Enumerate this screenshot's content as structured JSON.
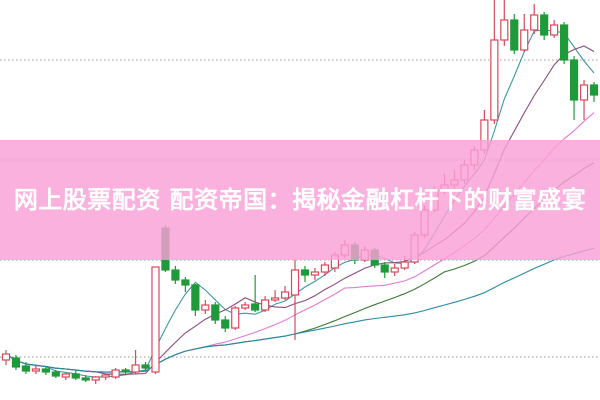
{
  "headline": "网上股票配资 配资帝国：揭秘金融杠杆下的财富盛宴",
  "colors": {
    "up": "#d9485a",
    "down": "#1f9a3a",
    "banner": "#fa9fd6",
    "grid": "#9a9a9a",
    "ma": [
      "#3a9aa0",
      "#8a4a80",
      "#e27ad6",
      "#3a7a30",
      "#2a8aa8"
    ]
  },
  "chart_data": {
    "type": "candlestick",
    "ylim": [
      0,
      40
    ],
    "grid": "horizontal-dotted",
    "moving_averages": [
      5,
      10,
      20,
      30,
      60
    ],
    "candles": [
      [
        4.0,
        5.0,
        3.5,
        4.6
      ],
      [
        4.2,
        4.5,
        3.0,
        3.3
      ],
      [
        3.4,
        3.8,
        2.6,
        2.9
      ],
      [
        2.9,
        3.4,
        2.6,
        3.1
      ],
      [
        3.1,
        3.3,
        2.5,
        2.8
      ],
      [
        2.8,
        3.0,
        2.2,
        2.4
      ],
      [
        2.3,
        2.8,
        2.0,
        2.6
      ],
      [
        2.6,
        3.0,
        2.0,
        2.2
      ],
      [
        2.2,
        2.5,
        1.8,
        2.0
      ],
      [
        2.0,
        2.4,
        1.6,
        2.3
      ],
      [
        2.3,
        2.6,
        2.0,
        2.5
      ],
      [
        2.3,
        3.2,
        2.1,
        3.0
      ],
      [
        3.0,
        3.2,
        2.5,
        2.8
      ],
      [
        2.8,
        5.0,
        2.6,
        3.5
      ],
      [
        3.5,
        3.8,
        3.0,
        3.2
      ],
      [
        2.8,
        13.3,
        2.6,
        13.3
      ],
      [
        17.2,
        17.5,
        12.8,
        13.0
      ],
      [
        13.0,
        13.4,
        11.6,
        12.0
      ],
      [
        12.0,
        12.3,
        10.8,
        11.5
      ],
      [
        11.5,
        11.6,
        8.4,
        9.0
      ],
      [
        9.0,
        10.0,
        8.6,
        9.5
      ],
      [
        9.5,
        9.8,
        7.6,
        8.0
      ],
      [
        8.0,
        8.4,
        6.8,
        7.2
      ],
      [
        7.2,
        9.4,
        7.0,
        9.2
      ],
      [
        9.2,
        9.8,
        9.0,
        9.5
      ],
      [
        9.6,
        12.5,
        8.8,
        9.0
      ],
      [
        9.0,
        10.4,
        8.8,
        10.0
      ],
      [
        10.0,
        11.0,
        9.8,
        10.2
      ],
      [
        10.2,
        11.4,
        10.0,
        10.8
      ],
      [
        10.5,
        14.0,
        6.0,
        13.0
      ],
      [
        13.0,
        13.4,
        11.8,
        12.5
      ],
      [
        12.5,
        13.2,
        12.0,
        12.8
      ],
      [
        12.8,
        13.8,
        12.4,
        13.5
      ],
      [
        13.2,
        14.8,
        12.8,
        14.5
      ],
      [
        14.5,
        16.0,
        14.2,
        15.5
      ],
      [
        15.5,
        15.8,
        13.6,
        14.0
      ],
      [
        14.0,
        15.4,
        13.8,
        15.0
      ],
      [
        15.0,
        15.2,
        13.2,
        13.5
      ],
      [
        13.5,
        13.8,
        12.2,
        12.8
      ],
      [
        12.8,
        13.6,
        12.4,
        13.2
      ],
      [
        13.2,
        14.4,
        13.0,
        13.8
      ],
      [
        13.8,
        16.8,
        13.6,
        16.5
      ],
      [
        16.5,
        19.4,
        16.2,
        19.0
      ],
      [
        19.0,
        21.4,
        18.8,
        21.0
      ],
      [
        21.0,
        22.6,
        20.6,
        21.5
      ],
      [
        21.5,
        23.0,
        21.0,
        22.0
      ],
      [
        22.0,
        24.0,
        21.6,
        23.5
      ],
      [
        23.5,
        25.4,
        23.0,
        25.0
      ],
      [
        25.0,
        29.0,
        24.6,
        28.0
      ],
      [
        28.0,
        40.0,
        27.6,
        36.0
      ],
      [
        36.0,
        40.0,
        35.4,
        38.0
      ],
      [
        38.0,
        38.6,
        34.6,
        35.0
      ],
      [
        35.0,
        38.6,
        34.8,
        37.0
      ],
      [
        37.0,
        39.6,
        36.6,
        38.5
      ],
      [
        38.5,
        38.8,
        36.0,
        36.5
      ],
      [
        36.5,
        38.0,
        36.2,
        37.5
      ],
      [
        37.5,
        37.8,
        33.6,
        34.0
      ],
      [
        34.0,
        34.4,
        28.0,
        30.0
      ],
      [
        30.0,
        32.0,
        28.0,
        31.5
      ],
      [
        31.5,
        31.8,
        29.8,
        30.5
      ]
    ]
  }
}
